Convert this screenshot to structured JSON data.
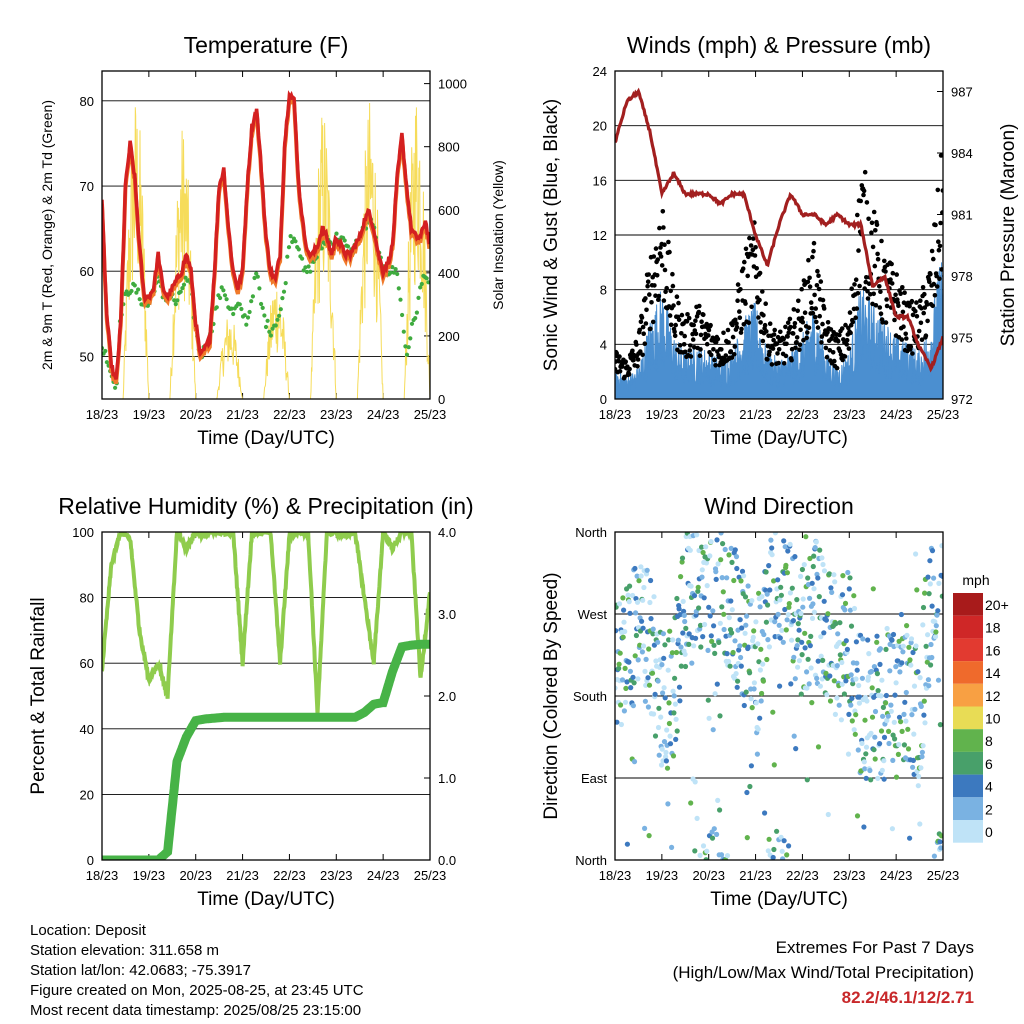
{
  "days": [
    "18/23",
    "19/23",
    "20/23",
    "21/23",
    "22/23",
    "23/23",
    "24/23",
    "25/23"
  ],
  "colors": {
    "temp2m": "#d42020",
    "temp9m": "#f07a2a",
    "dewpoint": "#3fab3f",
    "solar": "#f6dc5a",
    "wind": "#4b8fd0",
    "gust": "#000000",
    "pressure": "#a21f1f",
    "rh": "#8fcc4d",
    "precip": "#47b347"
  },
  "speed_scale": {
    "title": "mph",
    "labels": [
      "20+",
      "18",
      "16",
      "14",
      "12",
      "10",
      "8",
      "6",
      "4",
      "2",
      "0"
    ],
    "colors": [
      "#a81b1b",
      "#cf2727",
      "#e23a30",
      "#ef6a2c",
      "#f8a043",
      "#e8dc55",
      "#61b34d",
      "#48a06a",
      "#3c79bf",
      "#7ab2e2",
      "#bfe3f7"
    ]
  },
  "chart_data": [
    {
      "type": "line",
      "title": "Temperature (F)",
      "xlabel": "Time (Day/UTC)",
      "ylabel": "2m & 9m T (Red, Orange) & 2m Td (Green)",
      "y2label": "Solar Insolation (Yellow)",
      "ylim": [
        45,
        83.5
      ],
      "yticks": [
        50,
        60,
        70,
        80
      ],
      "y2lim": [
        0,
        1040
      ],
      "y2ticks": [
        0,
        200,
        400,
        600,
        800,
        1000
      ],
      "x": [
        0,
        0.1,
        0.2,
        0.3,
        0.4,
        0.5,
        0.6,
        0.7,
        0.8,
        0.9,
        1.0,
        1.1,
        1.2,
        1.3,
        1.4,
        1.5,
        1.6,
        1.7,
        1.8,
        1.9,
        2.0,
        2.1,
        2.2,
        2.3,
        2.4,
        2.5,
        2.6,
        2.7,
        2.8,
        2.9,
        3.0,
        3.1,
        3.2,
        3.3,
        3.4,
        3.5,
        3.6,
        3.7,
        3.8,
        3.9,
        4.0,
        4.1,
        4.2,
        4.3,
        4.4,
        4.5,
        4.6,
        4.7,
        4.8,
        4.9,
        5.0,
        5.1,
        5.2,
        5.3,
        5.4,
        5.5,
        5.6,
        5.7,
        5.8,
        5.9,
        6.0,
        6.1,
        6.2,
        6.3,
        6.4,
        6.5,
        6.6,
        6.7,
        6.8,
        6.9,
        7.0
      ],
      "series": [
        {
          "name": "2m T",
          "values": [
            68,
            55,
            49,
            47,
            54,
            70,
            75,
            71,
            63,
            57,
            57,
            58,
            62,
            58,
            57,
            58,
            59,
            60,
            62,
            60,
            54,
            50,
            51,
            52,
            60,
            70,
            72,
            65,
            60,
            58,
            60,
            70,
            77,
            79,
            72,
            64,
            60,
            59,
            62,
            75,
            81,
            80,
            70,
            65,
            62,
            62,
            63,
            65,
            64,
            62,
            64,
            63,
            62,
            62,
            63,
            64,
            66,
            67,
            65,
            62,
            60,
            61,
            63,
            71,
            76,
            70,
            65,
            64,
            64,
            66,
            63
          ]
        },
        {
          "name": "2m Td",
          "values": [
            51,
            50,
            48,
            46,
            55,
            57,
            58,
            58,
            57,
            56,
            56,
            58,
            59,
            57,
            57,
            57,
            56,
            58,
            59,
            58,
            53,
            50,
            51,
            52,
            55,
            57,
            58,
            56,
            55,
            56,
            55,
            54,
            57,
            60,
            56,
            54,
            53,
            54,
            55,
            58,
            64,
            64,
            63,
            60,
            60,
            61,
            62,
            63,
            64,
            63,
            64,
            64,
            63,
            62,
            63,
            64,
            65,
            66,
            65,
            62,
            60,
            60,
            60,
            60,
            55,
            50,
            53,
            55,
            58,
            60,
            58
          ]
        }
      ],
      "solar_peaks": [
        {
          "day": 0.75,
          "value": 980
        },
        {
          "day": 1.75,
          "value": 880
        },
        {
          "day": 2.75,
          "value": 280
        },
        {
          "day": 3.75,
          "value": 400
        },
        {
          "day": 4.75,
          "value": 940
        },
        {
          "day": 5.75,
          "value": 960
        },
        {
          "day": 6.75,
          "value": 1020
        }
      ]
    },
    {
      "type": "scatter",
      "title": "Winds (mph) & Pressure (mb)",
      "xlabel": "Time (Day/UTC)",
      "ylabel": "Sonic Wind & Gust (Blue, Black)",
      "y2label": "Station Pressure (Maroon)",
      "ylim": [
        0,
        24
      ],
      "yticks": [
        0,
        4,
        8,
        12,
        16,
        20,
        24
      ],
      "y2lim": [
        972,
        988
      ],
      "y2ticks": [
        972,
        975,
        978,
        981,
        984,
        987
      ],
      "x": [
        0,
        0.25,
        0.5,
        0.75,
        1.0,
        1.25,
        1.5,
        1.75,
        2.0,
        2.25,
        2.5,
        2.75,
        3.0,
        3.25,
        3.5,
        3.75,
        4.0,
        4.25,
        4.5,
        4.75,
        5.0,
        5.25,
        5.5,
        5.75,
        6.0,
        6.25,
        6.5,
        6.75,
        7.0
      ],
      "series": [
        {
          "name": "Station Pressure",
          "values": [
            984.5,
            986.5,
            987,
            985,
            982,
            983,
            982,
            982,
            982,
            981.5,
            982,
            982,
            980,
            978.5,
            980.5,
            982,
            981,
            981,
            980.5,
            981,
            980.5,
            980.5,
            977.5,
            978,
            976,
            976,
            974.5,
            973.5,
            975
          ]
        },
        {
          "name": "Sonic Wind",
          "values": [
            2,
            1.5,
            2,
            5,
            7,
            4,
            3,
            3.5,
            3,
            2.5,
            3,
            5,
            6,
            3,
            2.5,
            3,
            4,
            6,
            3,
            2,
            3,
            7,
            6,
            5,
            4,
            3.5,
            3,
            5,
            10
          ]
        },
        {
          "name": "Gust",
          "values": [
            3,
            2.5,
            4,
            9,
            13,
            7,
            5,
            6,
            5,
            4,
            5,
            9,
            11,
            5,
            4,
            5,
            7,
            10,
            5,
            4,
            5,
            15,
            12,
            9,
            8,
            6,
            6,
            9,
            16
          ]
        }
      ]
    },
    {
      "type": "line",
      "title": "Relative Humidity (%) & Precipitation (in)",
      "xlabel": "Time (Day/UTC)",
      "ylabel": "Percent & Total Rainfall",
      "ylim": [
        0,
        100
      ],
      "yticks": [
        0,
        20,
        40,
        60,
        80,
        100
      ],
      "y2lim": [
        0,
        4.0
      ],
      "y2ticks": [
        "0.0",
        "1.0",
        "2.0",
        "3.0",
        "4.0"
      ],
      "x": [
        0,
        0.2,
        0.4,
        0.6,
        0.8,
        1.0,
        1.2,
        1.4,
        1.6,
        1.8,
        2.0,
        2.2,
        2.4,
        2.6,
        2.8,
        3.0,
        3.2,
        3.4,
        3.6,
        3.8,
        4.0,
        4.2,
        4.4,
        4.6,
        4.8,
        5.0,
        5.2,
        5.4,
        5.6,
        5.8,
        6.0,
        6.2,
        6.4,
        6.6,
        6.8,
        7.0
      ],
      "series": [
        {
          "name": "RH",
          "values": [
            58,
            90,
            100,
            98,
            70,
            55,
            60,
            50,
            100,
            95,
            100,
            99,
            100,
            100,
            100,
            60,
            100,
            100,
            100,
            60,
            99,
            100,
            100,
            45,
            100,
            100,
            99,
            100,
            80,
            60,
            100,
            95,
            100,
            100,
            55,
            82
          ]
        },
        {
          "name": "Total Precipitation",
          "values": [
            0,
            0,
            0,
            0,
            0,
            0,
            0,
            0.1,
            1.2,
            1.5,
            1.7,
            1.72,
            1.73,
            1.74,
            1.74,
            1.74,
            1.74,
            1.74,
            1.74,
            1.74,
            1.74,
            1.74,
            1.74,
            1.74,
            1.74,
            1.74,
            1.74,
            1.74,
            1.8,
            1.9,
            1.92,
            2.3,
            2.6,
            2.62,
            2.63,
            2.63
          ]
        }
      ]
    },
    {
      "type": "scatter",
      "title": "Wind Direction",
      "xlabel": "Time (Day/UTC)",
      "ylabel": "Direction (Colored By Speed)",
      "ylim": [
        0,
        360
      ],
      "ytick_labels": [
        "North",
        "East",
        "South",
        "West",
        "North"
      ],
      "x": [
        0,
        0.25,
        0.5,
        0.75,
        1.0,
        1.25,
        1.5,
        1.75,
        2.0,
        2.25,
        2.5,
        2.75,
        3.0,
        3.25,
        3.5,
        3.75,
        4.0,
        4.25,
        4.5,
        4.75,
        5.0,
        5.25,
        5.5,
        5.75,
        6.0,
        6.25,
        6.5,
        6.75,
        7.0
      ],
      "series": [
        {
          "name": "Direction",
          "values": [
            200,
            230,
            250,
            240,
            170,
            190,
            280,
            300,
            310,
            320,
            270,
            250,
            200,
            300,
            320,
            290,
            260,
            280,
            250,
            230,
            240,
            170,
            160,
            180,
            170,
            180,
            160,
            300,
            320
          ]
        }
      ]
    }
  ],
  "info": {
    "location": "Location: Deposit",
    "elevation": "Station elevation: 311.658 m",
    "latlon": "Station lat/lon: 42.0683; -75.3917",
    "created": "Figure created on Mon, 2025-08-25, at 23:45 UTC",
    "latest": "Most recent data timestamp: 2025/08/25 23:15:00"
  },
  "extremes": {
    "title": "Extremes For Past 7 Days",
    "subtitle": "(High/Low/Max Wind/Total Precipitation)",
    "values": "82.2/46.1/12/2.71"
  }
}
